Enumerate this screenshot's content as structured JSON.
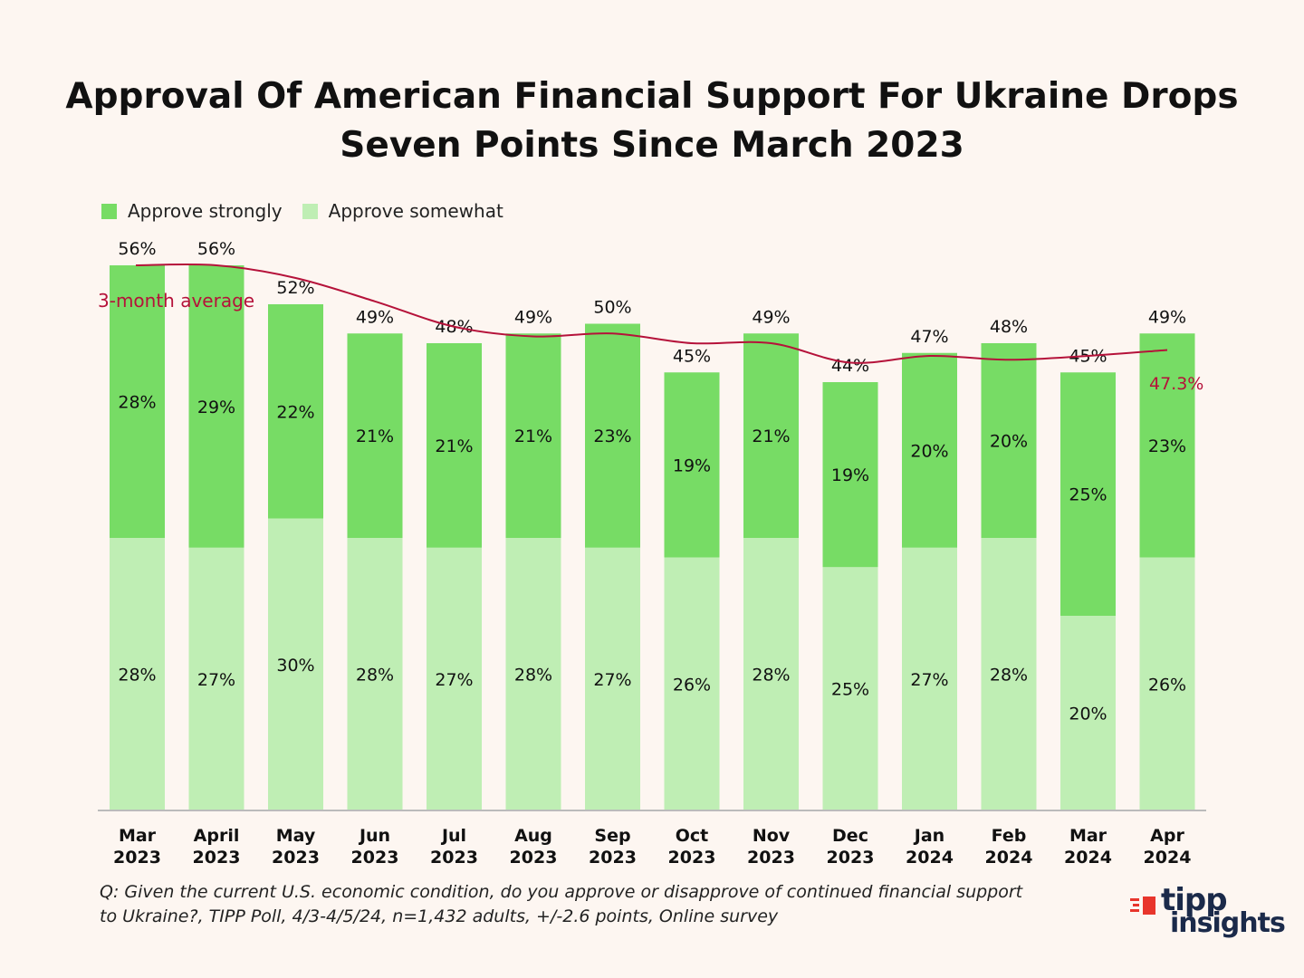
{
  "title": {
    "line1": "Approval Of American Financial Support For Ukraine Drops",
    "line2": "Seven Points Since March 2023"
  },
  "legend": {
    "strong": "Approve strongly",
    "somewhat": "Approve somewhat"
  },
  "colors": {
    "strong": "#77dc65",
    "somewhat": "#bfeeb4",
    "average_line": "#b5123a",
    "background": "#fdf6f1"
  },
  "chart_data": {
    "type": "bar",
    "stacked": true,
    "title": "Approval Of American Financial Support For Ukraine Drops Seven Points Since March 2023",
    "categories": [
      [
        "Mar",
        "2023"
      ],
      [
        "April",
        "2023"
      ],
      [
        "May",
        "2023"
      ],
      [
        "Jun",
        "2023"
      ],
      [
        "Jul",
        "2023"
      ],
      [
        "Aug",
        "2023"
      ],
      [
        "Sep",
        "2023"
      ],
      [
        "Oct",
        "2023"
      ],
      [
        "Nov",
        "2023"
      ],
      [
        "Dec",
        "2023"
      ],
      [
        "Jan",
        "2024"
      ],
      [
        "Feb",
        "2024"
      ],
      [
        "Mar",
        "2024"
      ],
      [
        "Apr",
        "2024"
      ]
    ],
    "series": [
      {
        "name": "Approve somewhat",
        "values": [
          28,
          27,
          30,
          28,
          27,
          28,
          27,
          26,
          28,
          25,
          27,
          28,
          20,
          26
        ]
      },
      {
        "name": "Approve strongly",
        "values": [
          28,
          29,
          22,
          21,
          21,
          21,
          23,
          19,
          21,
          19,
          20,
          20,
          25,
          23
        ]
      }
    ],
    "totals": [
      56,
      56,
      52,
      49,
      48,
      49,
      50,
      45,
      49,
      44,
      47,
      48,
      45,
      49
    ],
    "average_line": {
      "name": "3-month average",
      "values": [
        56,
        56,
        54.7,
        52.3,
        49.7,
        48.7,
        49.0,
        48.0,
        48.0,
        46.0,
        46.7,
        46.3,
        46.7,
        47.3
      ],
      "end_label": "47.3%"
    },
    "ylim": [
      0,
      60
    ],
    "xlabel": "",
    "ylabel": "",
    "legend_position": "top-left"
  },
  "footnote": {
    "line1": "Q: Given the current U.S. economic condition, do you approve or disapprove of continued financial support",
    "line2": "to Ukraine?, TIPP Poll, 4/3-4/5/24, n=1,432 adults, +/-2.6 points, Online survey"
  },
  "logo": {
    "line1": "tipp",
    "line2": "insights"
  }
}
